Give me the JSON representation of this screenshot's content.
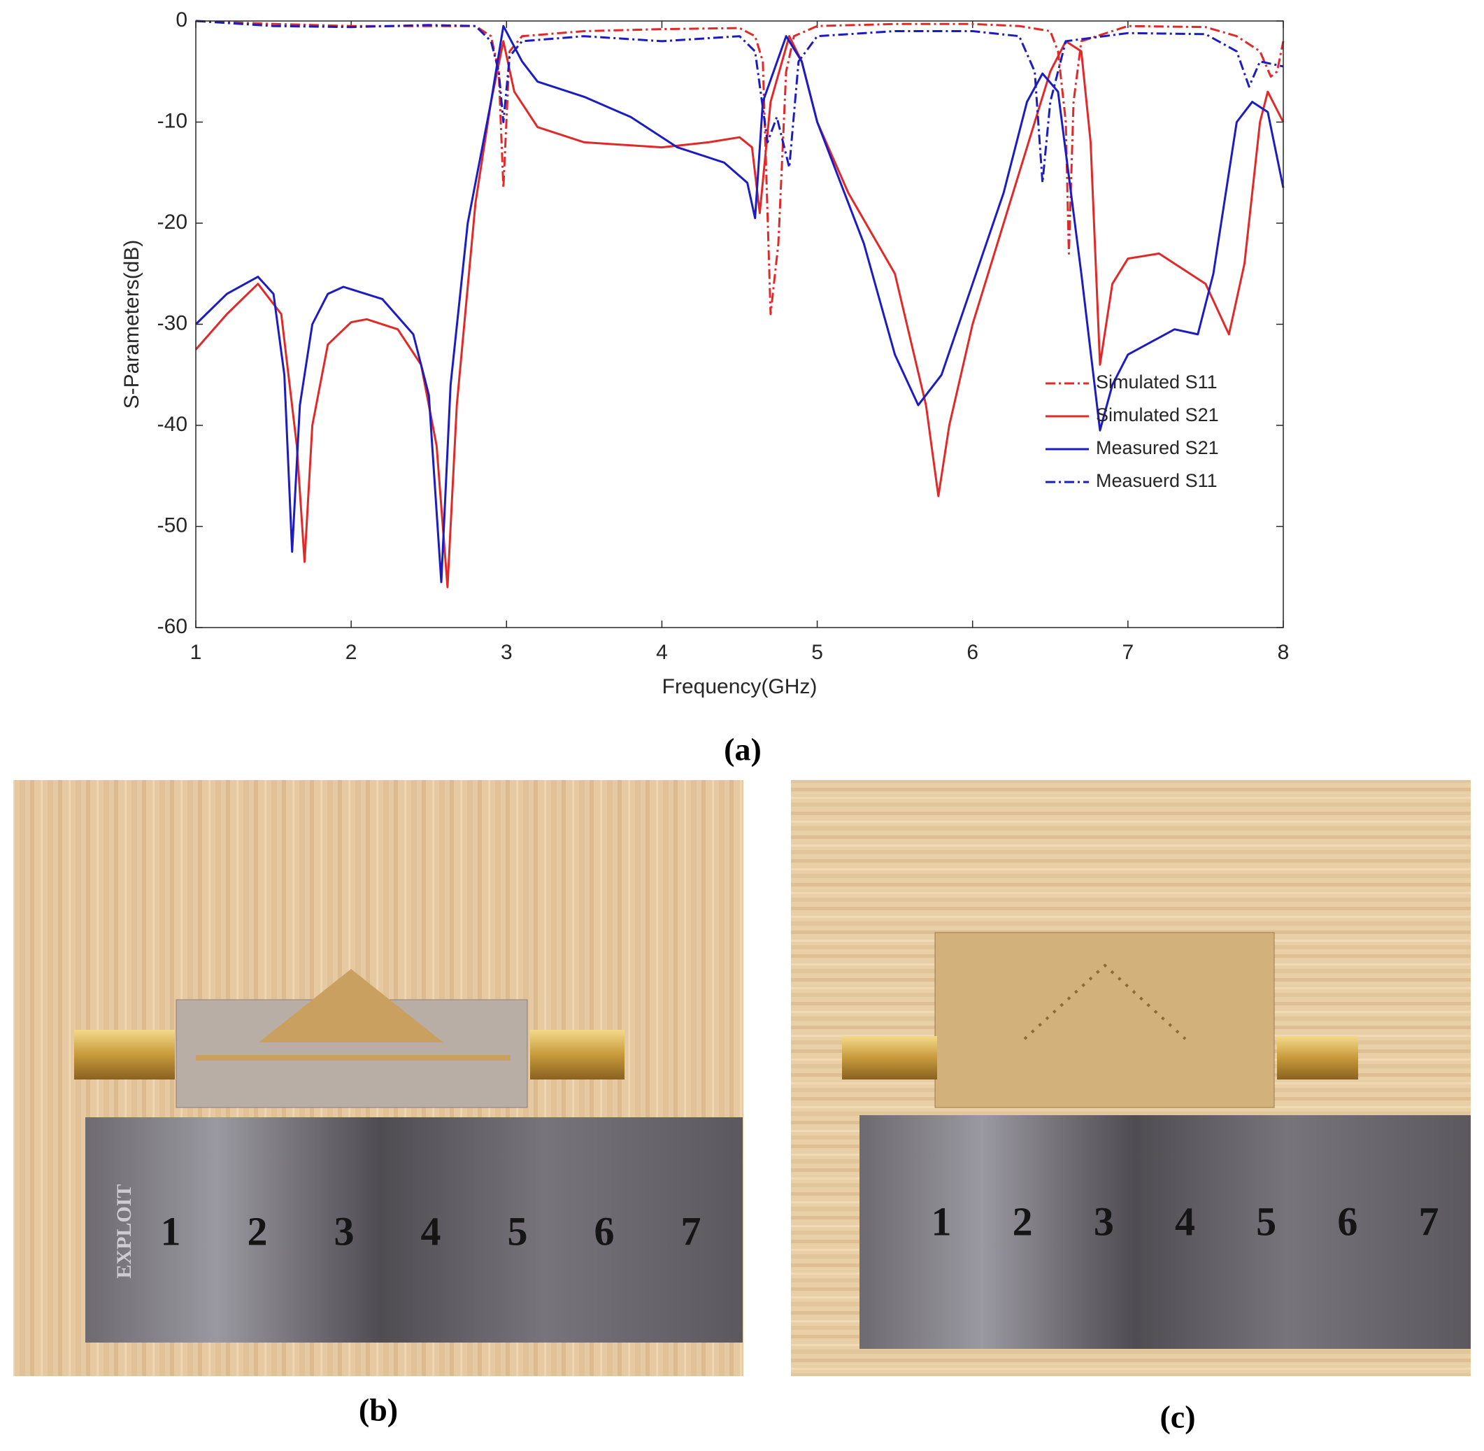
{
  "chart_data": {
    "type": "line",
    "caption": "(a)",
    "xlabel": "Frequency(GHz)",
    "ylabel": "S-Parameters(dB)",
    "xlim": [
      1,
      8
    ],
    "ylim": [
      -60,
      0
    ],
    "xticks": [
      1,
      2,
      3,
      4,
      5,
      6,
      7,
      8
    ],
    "yticks": [
      0,
      -10,
      -20,
      -30,
      -40,
      -50,
      -60
    ],
    "legend": "lower right",
    "series": [
      {
        "name": "Simulated S11",
        "color": "#e02a2a",
        "style": "dashdot",
        "x": [
          1,
          1.5,
          2,
          2.5,
          2.8,
          2.9,
          2.95,
          2.98,
          3.02,
          3.1,
          3.5,
          4,
          4.5,
          4.6,
          4.65,
          4.7,
          4.75,
          4.8,
          4.85,
          5,
          5.5,
          6,
          6.3,
          6.5,
          6.55,
          6.6,
          6.62,
          6.65,
          6.7,
          7,
          7.5,
          7.7,
          7.85,
          7.92,
          7.96,
          8
        ],
        "values": [
          0,
          -0.3,
          -0.5,
          -0.5,
          -0.5,
          -1.5,
          -5,
          -16.5,
          -3,
          -1.5,
          -1,
          -0.8,
          -0.7,
          -1.5,
          -4,
          -29,
          -22,
          -5,
          -1.5,
          -0.5,
          -0.3,
          -0.3,
          -0.5,
          -1,
          -3,
          -10,
          -23,
          -8,
          -2,
          -0.5,
          -0.6,
          -1.5,
          -3,
          -5.5,
          -5,
          -2
        ]
      },
      {
        "name": "Simulated S21",
        "color": "#e02a2a",
        "style": "solid",
        "x": [
          1,
          1.2,
          1.4,
          1.55,
          1.65,
          1.7,
          1.75,
          1.85,
          2,
          2.1,
          2.3,
          2.45,
          2.55,
          2.62,
          2.68,
          2.8,
          2.9,
          2.98,
          3.05,
          3.2,
          3.5,
          4,
          4.3,
          4.5,
          4.58,
          4.63,
          4.7,
          4.82,
          4.9,
          5,
          5.2,
          5.5,
          5.7,
          5.78,
          5.85,
          6,
          6.3,
          6.5,
          6.6,
          6.7,
          6.76,
          6.82,
          6.9,
          7,
          7.2,
          7.5,
          7.65,
          7.75,
          7.85,
          7.9,
          8
        ],
        "values": [
          -32.5,
          -29,
          -26,
          -29,
          -42,
          -53.5,
          -40,
          -32,
          -29.8,
          -29.5,
          -30.5,
          -34,
          -42,
          -56,
          -38,
          -18,
          -8,
          -2,
          -7,
          -10.5,
          -12,
          -12.5,
          -12,
          -11.5,
          -12.5,
          -19,
          -8,
          -1.5,
          -4,
          -10,
          -17,
          -25,
          -38,
          -47,
          -40,
          -30,
          -15,
          -5,
          -2,
          -3,
          -12,
          -34,
          -26,
          -23.5,
          -23,
          -26,
          -31,
          -24,
          -10,
          -7,
          -10
        ]
      },
      {
        "name": "Measured S21",
        "color": "#1c1cc0",
        "style": "solid",
        "x": [
          1,
          1.2,
          1.4,
          1.5,
          1.57,
          1.62,
          1.67,
          1.75,
          1.85,
          1.95,
          2.2,
          2.4,
          2.5,
          2.58,
          2.64,
          2.75,
          2.9,
          2.98,
          3.1,
          3.2,
          3.5,
          3.8,
          4.1,
          4.4,
          4.55,
          4.6,
          4.65,
          4.8,
          4.9,
          5,
          5.3,
          5.5,
          5.65,
          5.8,
          6,
          6.2,
          6.35,
          6.45,
          6.55,
          6.7,
          6.82,
          6.9,
          7,
          7.3,
          7.45,
          7.55,
          7.7,
          7.8,
          7.9,
          8
        ],
        "values": [
          -30,
          -27,
          -25.3,
          -27,
          -35,
          -52.5,
          -38,
          -30,
          -27,
          -26.3,
          -27.5,
          -31,
          -37,
          -55.5,
          -36,
          -20,
          -8,
          -0.5,
          -4,
          -6,
          -7.5,
          -9.5,
          -12.5,
          -14,
          -16,
          -19.5,
          -8,
          -1.5,
          -4,
          -10,
          -22,
          -33,
          -38,
          -35,
          -26,
          -17,
          -8,
          -5.2,
          -7,
          -25,
          -40.5,
          -36,
          -33,
          -30.5,
          -31,
          -25,
          -10,
          -8,
          -9,
          -16.5
        ]
      },
      {
        "name": "Measuerd S11",
        "color": "#1c1cc0",
        "style": "dashdot",
        "x": [
          1,
          1.5,
          2,
          2.5,
          2.8,
          2.9,
          2.95,
          2.98,
          3.02,
          3.1,
          3.5,
          4,
          4.5,
          4.6,
          4.68,
          4.74,
          4.78,
          4.82,
          4.88,
          5,
          5.5,
          6,
          6.3,
          6.4,
          6.45,
          6.5,
          6.6,
          7,
          7.5,
          7.7,
          7.78,
          7.85,
          8
        ],
        "values": [
          0,
          -0.5,
          -0.6,
          -0.4,
          -0.5,
          -2,
          -5,
          -10,
          -3.5,
          -2,
          -1.5,
          -2,
          -1.5,
          -3,
          -12,
          -9.5,
          -12,
          -14.5,
          -4,
          -1.5,
          -1,
          -1,
          -1.5,
          -5,
          -16,
          -8,
          -2,
          -1.2,
          -1.3,
          -3,
          -6.5,
          -4,
          -4.5
        ]
      }
    ]
  },
  "photos": [
    {
      "caption": "(b)",
      "ruler_numbers": [
        "1",
        "2",
        "3",
        "4",
        "5",
        "6",
        "7"
      ],
      "ruler_brand": "EXPLOIT"
    },
    {
      "caption": "(c)",
      "ruler_numbers": [
        "1",
        "2",
        "3",
        "4",
        "5",
        "6",
        "7"
      ]
    }
  ]
}
